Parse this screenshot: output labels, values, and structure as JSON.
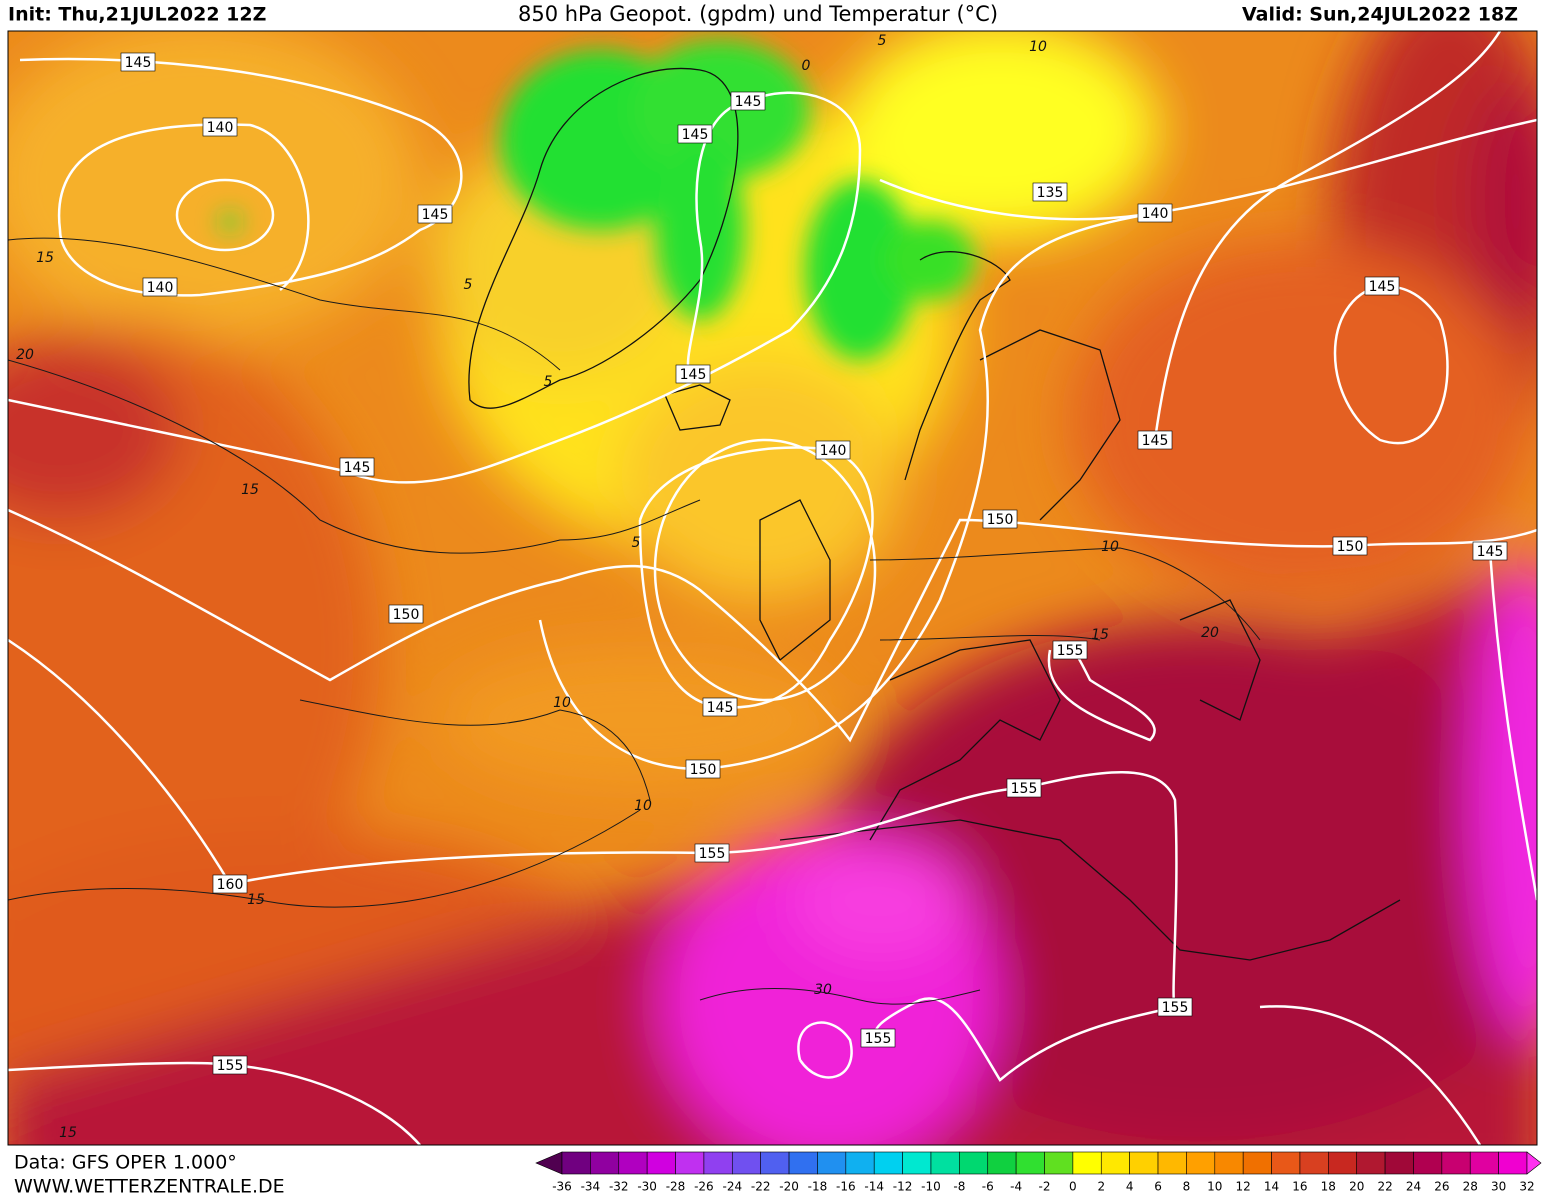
{
  "header": {
    "init": "Init: Thu,21JUL2022 12Z",
    "title": "850 hPa Geopot. (gpdm) und Temperatur (°C)",
    "valid": "Valid: Sun,24JUL2022 18Z"
  },
  "map": {
    "geopotential_labels": [
      145,
      140,
      145,
      140,
      145,
      145,
      135,
      140,
      145,
      145,
      145,
      140,
      145,
      150,
      150,
      145,
      150,
      155,
      145,
      150,
      155,
      155,
      160,
      155,
      155,
      155
    ],
    "temperature_labels": [
      15,
      20,
      5,
      5,
      15,
      5,
      10,
      15,
      20,
      10,
      10,
      15,
      30,
      15,
      5,
      0,
      10
    ]
  },
  "footer": {
    "data_source": "Data: GFS OPER 1.000°",
    "website": "WWW.WETTERZENTRALE.DE"
  },
  "colorbar": {
    "labels": [
      -36,
      -34,
      -32,
      -30,
      -28,
      -26,
      -24,
      -22,
      -20,
      -18,
      -16,
      -14,
      -12,
      -10,
      -8,
      -6,
      -4,
      -2,
      0,
      2,
      4,
      6,
      8,
      10,
      12,
      14,
      16,
      18,
      20,
      22,
      24,
      26,
      28,
      30,
      32
    ]
  }
}
